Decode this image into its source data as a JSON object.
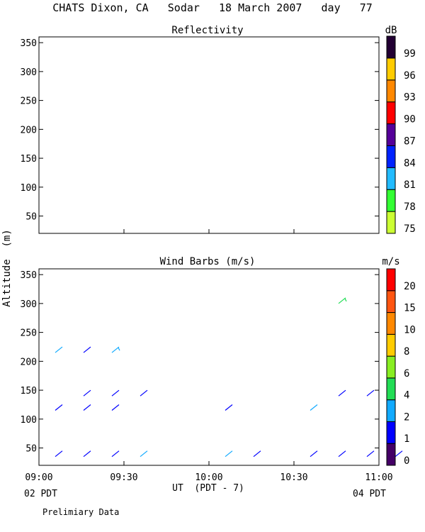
{
  "title": "CHATS Dixon, CA   Sodar   18 March 2007   day   77",
  "footer": {
    "left_time_label": "02 PDT",
    "right_time_label": "04 PDT",
    "note": "Prelimiary Data"
  },
  "colors": {
    "reflectivity_scale": [
      "#ccff33",
      "#33ff33",
      "#22bbff",
      "#0022ff",
      "#550099",
      "#ff0000",
      "#ff8800",
      "#ffcc00",
      "#220033"
    ],
    "wind_scale": [
      "#440066",
      "#0000ff",
      "#11aaff",
      "#22dd55",
      "#88ee22",
      "#ffcc00",
      "#ff8800",
      "#ff5511",
      "#ff0000"
    ]
  },
  "chart_data": [
    {
      "type": "heatmap",
      "title": "Reflectivity",
      "ylabel": "Altitude  (m)",
      "ylim": [
        20,
        360
      ],
      "yticks": [
        50,
        100,
        150,
        200,
        250,
        300,
        350
      ],
      "xlim": [
        "09:00",
        "11:00"
      ],
      "colorbar": {
        "label": "dB",
        "ticks": [
          "75",
          "78",
          "81",
          "84",
          "87",
          "90",
          "93",
          "96",
          "99"
        ]
      },
      "values": []
    },
    {
      "type": "scatter",
      "title": "Wind Barbs (m/s)",
      "xlabel": "UT  (PDT - 7)",
      "ylabel": "Altitude  (m)",
      "ylim": [
        20,
        360
      ],
      "yticks": [
        50,
        100,
        150,
        200,
        250,
        300,
        350
      ],
      "xlim": [
        "09:00",
        "11:00"
      ],
      "xticks": [
        "09:00",
        "09:30",
        "10:00",
        "10:30",
        "11:00"
      ],
      "colorbar": {
        "label": "m/s",
        "ticks": [
          "0",
          "1",
          "2",
          "4",
          "6",
          "8",
          "10",
          "15",
          "20"
        ]
      },
      "points": [
        {
          "time": "09:07",
          "alt": 220,
          "speed": 2.6
        },
        {
          "time": "09:17",
          "alt": 220,
          "speed": 1.6
        },
        {
          "time": "09:27",
          "alt": 220,
          "speed": 3.2
        },
        {
          "time": "09:07",
          "alt": 120,
          "speed": 1.3
        },
        {
          "time": "09:17",
          "alt": 120,
          "speed": 1.3
        },
        {
          "time": "09:27",
          "alt": 120,
          "speed": 1.3
        },
        {
          "time": "09:17",
          "alt": 145,
          "speed": 1.3
        },
        {
          "time": "09:27",
          "alt": 145,
          "speed": 1.3
        },
        {
          "time": "09:37",
          "alt": 145,
          "speed": 1.3
        },
        {
          "time": "09:07",
          "alt": 40,
          "speed": 1.3
        },
        {
          "time": "09:17",
          "alt": 40,
          "speed": 1.3
        },
        {
          "time": "09:27",
          "alt": 40,
          "speed": 1.3
        },
        {
          "time": "09:37",
          "alt": 40,
          "speed": 2.6
        },
        {
          "time": "10:07",
          "alt": 40,
          "speed": 2.6
        },
        {
          "time": "10:07",
          "alt": 120,
          "speed": 1.3
        },
        {
          "time": "10:17",
          "alt": 40,
          "speed": 1.3
        },
        {
          "time": "10:37",
          "alt": 120,
          "speed": 2.6
        },
        {
          "time": "10:37",
          "alt": 40,
          "speed": 1.3
        },
        {
          "time": "10:47",
          "alt": 40,
          "speed": 1.3
        },
        {
          "time": "10:47",
          "alt": 145,
          "speed": 1.3
        },
        {
          "time": "10:47",
          "alt": 305,
          "speed": 4.4
        },
        {
          "time": "10:57",
          "alt": 40,
          "speed": 1.3
        },
        {
          "time": "10:57",
          "alt": 145,
          "speed": 1.3
        },
        {
          "time": "11:07",
          "alt": 40,
          "speed": 1.3
        }
      ]
    }
  ]
}
